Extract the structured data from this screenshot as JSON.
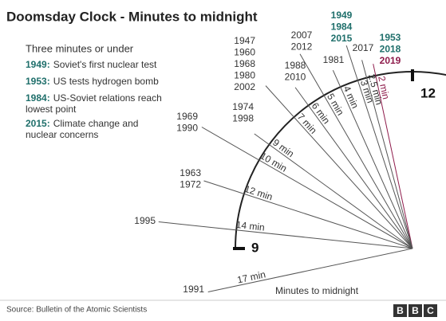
{
  "title": "Doomsday Clock - Minutes to midnight",
  "legend": {
    "heading": "Three minutes or under",
    "items": [
      {
        "year": "1949:",
        "text": [
          "Soviet's first nuclear test"
        ]
      },
      {
        "year": "1953:",
        "text": [
          "US tests hydrogen bomb"
        ]
      },
      {
        "year": "1984:",
        "text": [
          "US-Soviet relations reach",
          "lowest point"
        ]
      },
      {
        "year": "2015:",
        "text": [
          "Climate change and",
          "nuclear concerns"
        ]
      }
    ]
  },
  "settings": [
    {
      "minutes": 2,
      "label": "2 min",
      "color": "#8e1b4b",
      "years": [
        {
          "text": "1953",
          "color": "#1f6f6b"
        },
        {
          "text": "2018",
          "color": "#1f6f6b"
        },
        {
          "text": "2019",
          "color": "#8e1b4b"
        }
      ]
    },
    {
      "minutes": 2.5,
      "label": "2.5 min",
      "years": [
        "2017"
      ]
    },
    {
      "minutes": 3,
      "label": "3 min",
      "years": [
        {
          "text": "1949",
          "color": "#1f6f6b"
        },
        {
          "text": "1984",
          "color": "#1f6f6b"
        },
        {
          "text": "2015",
          "color": "#1f6f6b"
        }
      ]
    },
    {
      "minutes": 4,
      "label": "4 min",
      "years": [
        "1981"
      ]
    },
    {
      "minutes": 5,
      "label": "5 min",
      "years": [
        "2007",
        "2012"
      ]
    },
    {
      "minutes": 6,
      "label": "6 min",
      "years": [
        "1988",
        "2010"
      ]
    },
    {
      "minutes": 7,
      "label": "7 min",
      "years": [
        "1947",
        "1960",
        "1968",
        "1980",
        "2002"
      ]
    },
    {
      "minutes": 9,
      "label": "9 min",
      "years": [
        "1974",
        "1998"
      ]
    },
    {
      "minutes": 10,
      "label": "10 min",
      "years": [
        "1969",
        "1990"
      ]
    },
    {
      "minutes": 12,
      "label": "12 min",
      "years": [
        "1963",
        "1972"
      ]
    },
    {
      "minutes": 14,
      "label": "14 min",
      "years": [
        "1995"
      ]
    },
    {
      "minutes": 17,
      "label": "17 min",
      "years": [
        "1991"
      ]
    }
  ],
  "dial": {
    "twelve": "12",
    "nine": "9",
    "caption": "Minutes to midnight"
  },
  "source": "Source: Bulletin of the Atomic Scientists",
  "logo": [
    "B",
    "B",
    "C"
  ]
}
